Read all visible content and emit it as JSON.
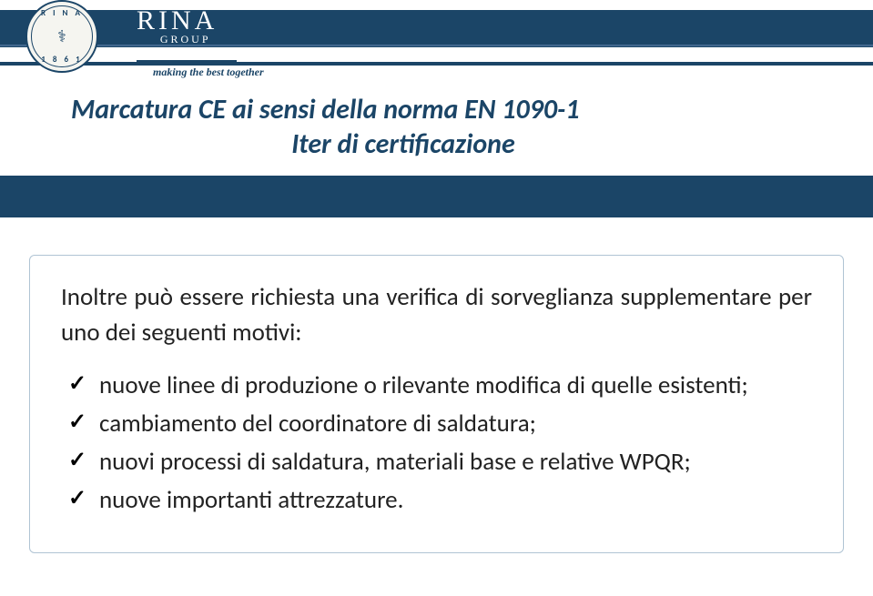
{
  "colors": {
    "brand_primary": "#1b4567",
    "band_accent": "#5479a0",
    "box_border": "#b0c4d4",
    "text_body": "#222222",
    "background": "#ffffff",
    "logo_bg": "#f5f5f0"
  },
  "typography": {
    "title_fontsize": 30,
    "body_fontsize": 27,
    "tagline_fontsize": 12,
    "brand_fontsize": 30
  },
  "logo": {
    "top_text": "R I N A",
    "bottom_text": "1 8 6 1",
    "symbol": "⚕"
  },
  "brand": {
    "name": "RINA",
    "group": "GROUP",
    "tagline": "making the best together"
  },
  "title": {
    "line1": "Marcatura CE ai sensi della norma EN 1090-1",
    "line2": "Iter di certificazione"
  },
  "content": {
    "lead": "Inoltre può essere richiesta una verifica di sorveglianza supplementare per uno dei seguenti motivi:",
    "items": [
      "nuove linee di produzione o rilevante modifica di quelle esistenti;",
      "cambiamento del coordinatore di saldatura;",
      "nuovi processi di saldatura, materiali base e relative WPQR;",
      "nuove importanti attrezzature."
    ]
  }
}
